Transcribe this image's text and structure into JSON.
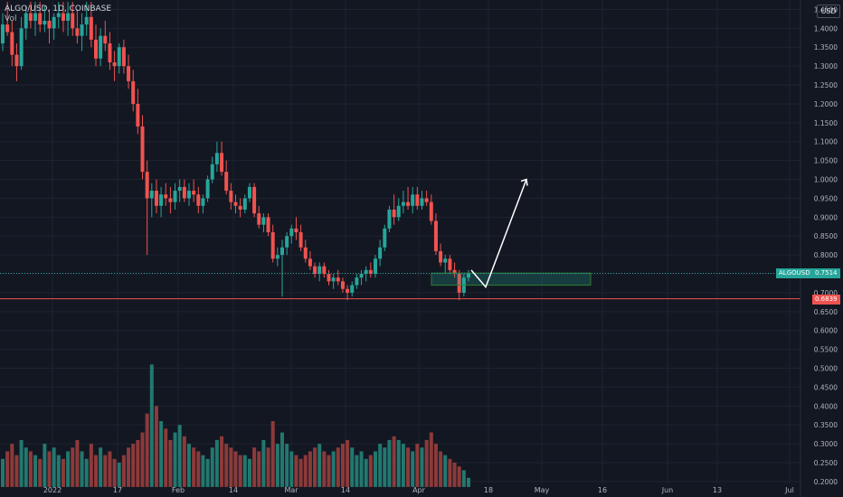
{
  "header": {
    "symbol_line": "ALGO/USD, 1D, COINBASE",
    "vol_label": "Vol"
  },
  "currency_button": "USD",
  "price_tags": {
    "symbol": "ALGOUSD",
    "last_price": "0.7514",
    "level_price": "0.6839"
  },
  "colors": {
    "bg": "#131722",
    "up": "#26a69a",
    "down": "#ef5350",
    "grid": "#1f2330",
    "text": "#b2b5be",
    "vol_up": "#22786f",
    "vol_down": "#8c3a3a"
  },
  "icons": {
    "projection": "arrow-up-right-icon"
  },
  "chart_data": {
    "type": "candlestick",
    "symbol": "ALGO/USD",
    "interval": "1D",
    "exchange": "COINBASE",
    "y_ticks": [
      "1.4500",
      "1.4000",
      "1.3500",
      "1.3000",
      "1.2500",
      "1.2000",
      "1.1500",
      "1.1000",
      "1.0500",
      "1.0000",
      "0.9500",
      "0.9000",
      "0.8500",
      "0.8000",
      "0.7500",
      "0.7000",
      "0.6500",
      "0.6000",
      "0.5500",
      "0.5000",
      "0.4500",
      "0.4000",
      "0.3500",
      "0.3000",
      "0.2500",
      "0.2000"
    ],
    "x_ticks": [
      "2022",
      "17",
      "Feb",
      "14",
      "Mar",
      "14",
      "Apr",
      "18",
      "May",
      "16",
      "Jun",
      "13",
      "Jul"
    ],
    "ylim": [
      0.195,
      1.475
    ],
    "last_price": 0.7514,
    "horizontal_level": 0.6839,
    "support_zone": {
      "low": 0.72,
      "high": 0.752
    },
    "projection_path": [
      [
        0.76,
        0.715
      ],
      [
        1.0
      ]
    ],
    "volume_scale": "bottom overlay",
    "ohlc": [
      [
        1.36,
        1.44,
        1.34,
        1.41
      ],
      [
        1.41,
        1.47,
        1.38,
        1.39
      ],
      [
        1.39,
        1.42,
        1.3,
        1.33
      ],
      [
        1.33,
        1.36,
        1.26,
        1.3
      ],
      [
        1.3,
        1.43,
        1.29,
        1.4
      ],
      [
        1.4,
        1.46,
        1.37,
        1.44
      ],
      [
        1.44,
        1.47,
        1.4,
        1.42
      ],
      [
        1.42,
        1.47,
        1.38,
        1.44
      ],
      [
        1.44,
        1.47,
        1.39,
        1.41
      ],
      [
        1.41,
        1.46,
        1.39,
        1.42
      ],
      [
        1.42,
        1.45,
        1.36,
        1.4
      ],
      [
        1.4,
        1.44,
        1.37,
        1.43
      ],
      [
        1.43,
        1.47,
        1.4,
        1.44
      ],
      [
        1.44,
        1.47,
        1.39,
        1.42
      ],
      [
        1.42,
        1.47,
        1.38,
        1.44
      ],
      [
        1.44,
        1.47,
        1.38,
        1.4
      ],
      [
        1.4,
        1.45,
        1.36,
        1.38
      ],
      [
        1.38,
        1.44,
        1.34,
        1.41
      ],
      [
        1.41,
        1.47,
        1.38,
        1.43
      ],
      [
        1.43,
        1.47,
        1.35,
        1.37
      ],
      [
        1.37,
        1.41,
        1.3,
        1.32
      ],
      [
        1.32,
        1.4,
        1.3,
        1.38
      ],
      [
        1.38,
        1.42,
        1.34,
        1.36
      ],
      [
        1.36,
        1.39,
        1.29,
        1.31
      ],
      [
        1.31,
        1.34,
        1.26,
        1.3
      ],
      [
        1.3,
        1.36,
        1.28,
        1.35
      ],
      [
        1.35,
        1.37,
        1.28,
        1.3
      ],
      [
        1.3,
        1.33,
        1.24,
        1.26
      ],
      [
        1.26,
        1.29,
        1.18,
        1.2
      ],
      [
        1.2,
        1.24,
        1.12,
        1.14
      ],
      [
        1.14,
        1.17,
        1.0,
        1.02
      ],
      [
        1.02,
        1.05,
        0.8,
        0.95
      ],
      [
        0.95,
        0.99,
        0.9,
        0.97
      ],
      [
        0.97,
        1.0,
        0.91,
        0.93
      ],
      [
        0.93,
        0.98,
        0.9,
        0.96
      ],
      [
        0.96,
        0.99,
        0.93,
        0.95
      ],
      [
        0.95,
        0.98,
        0.91,
        0.94
      ],
      [
        0.94,
        0.99,
        0.92,
        0.97
      ],
      [
        0.97,
        1.0,
        0.94,
        0.98
      ],
      [
        0.98,
        1.0,
        0.94,
        0.95
      ],
      [
        0.95,
        0.99,
        0.93,
        0.97
      ],
      [
        0.97,
        1.0,
        0.94,
        0.96
      ],
      [
        0.96,
        0.98,
        0.91,
        0.93
      ],
      [
        0.93,
        0.96,
        0.91,
        0.95
      ],
      [
        0.95,
        1.01,
        0.94,
        1.0
      ],
      [
        1.0,
        1.06,
        0.99,
        1.04
      ],
      [
        1.04,
        1.1,
        1.02,
        1.07
      ],
      [
        1.07,
        1.1,
        1.01,
        1.02
      ],
      [
        1.02,
        1.05,
        0.96,
        0.97
      ],
      [
        0.97,
        0.99,
        0.92,
        0.94
      ],
      [
        0.94,
        0.96,
        0.91,
        0.93
      ],
      [
        0.93,
        0.95,
        0.9,
        0.92
      ],
      [
        0.92,
        0.96,
        0.91,
        0.95
      ],
      [
        0.95,
        0.99,
        0.94,
        0.98
      ],
      [
        0.98,
        0.99,
        0.9,
        0.91
      ],
      [
        0.91,
        0.93,
        0.87,
        0.88
      ],
      [
        0.88,
        0.91,
        0.86,
        0.9
      ],
      [
        0.9,
        0.91,
        0.85,
        0.86
      ],
      [
        0.86,
        0.88,
        0.78,
        0.79
      ],
      [
        0.79,
        0.82,
        0.77,
        0.8
      ],
      [
        0.8,
        0.84,
        0.69,
        0.82
      ],
      [
        0.82,
        0.86,
        0.8,
        0.85
      ],
      [
        0.85,
        0.88,
        0.83,
        0.87
      ],
      [
        0.87,
        0.9,
        0.84,
        0.86
      ],
      [
        0.86,
        0.88,
        0.81,
        0.82
      ],
      [
        0.82,
        0.84,
        0.78,
        0.79
      ],
      [
        0.79,
        0.81,
        0.76,
        0.77
      ],
      [
        0.77,
        0.78,
        0.74,
        0.75
      ],
      [
        0.75,
        0.78,
        0.73,
        0.77
      ],
      [
        0.77,
        0.78,
        0.74,
        0.75
      ],
      [
        0.75,
        0.76,
        0.72,
        0.73
      ],
      [
        0.73,
        0.75,
        0.71,
        0.74
      ],
      [
        0.74,
        0.76,
        0.72,
        0.73
      ],
      [
        0.73,
        0.74,
        0.7,
        0.71
      ],
      [
        0.71,
        0.72,
        0.68,
        0.7
      ],
      [
        0.7,
        0.73,
        0.69,
        0.72
      ],
      [
        0.72,
        0.75,
        0.71,
        0.74
      ],
      [
        0.74,
        0.76,
        0.72,
        0.75
      ],
      [
        0.75,
        0.77,
        0.73,
        0.76
      ],
      [
        0.76,
        0.78,
        0.74,
        0.75
      ],
      [
        0.75,
        0.8,
        0.74,
        0.79
      ],
      [
        0.79,
        0.84,
        0.77,
        0.82
      ],
      [
        0.82,
        0.88,
        0.81,
        0.87
      ],
      [
        0.87,
        0.93,
        0.86,
        0.92
      ],
      [
        0.92,
        0.96,
        0.88,
        0.9
      ],
      [
        0.9,
        0.95,
        0.89,
        0.93
      ],
      [
        0.93,
        0.97,
        0.91,
        0.94
      ],
      [
        0.94,
        0.98,
        0.92,
        0.93
      ],
      [
        0.93,
        0.98,
        0.91,
        0.96
      ],
      [
        0.96,
        0.98,
        0.92,
        0.93
      ],
      [
        0.93,
        0.97,
        0.92,
        0.95
      ],
      [
        0.95,
        0.97,
        0.93,
        0.94
      ],
      [
        0.94,
        0.96,
        0.88,
        0.89
      ],
      [
        0.89,
        0.91,
        0.8,
        0.81
      ],
      [
        0.81,
        0.83,
        0.77,
        0.78
      ],
      [
        0.78,
        0.8,
        0.75,
        0.79
      ],
      [
        0.79,
        0.8,
        0.75,
        0.76
      ],
      [
        0.76,
        0.78,
        0.74,
        0.75
      ],
      [
        0.75,
        0.76,
        0.68,
        0.7
      ],
      [
        0.7,
        0.75,
        0.69,
        0.74
      ],
      [
        0.74,
        0.76,
        0.73,
        0.7514
      ]
    ],
    "volume": [
      0.26,
      0.28,
      0.3,
      0.27,
      0.31,
      0.29,
      0.28,
      0.27,
      0.26,
      0.3,
      0.28,
      0.29,
      0.27,
      0.26,
      0.28,
      0.29,
      0.31,
      0.28,
      0.26,
      0.3,
      0.27,
      0.29,
      0.27,
      0.28,
      0.26,
      0.25,
      0.27,
      0.29,
      0.3,
      0.31,
      0.33,
      0.38,
      0.51,
      0.4,
      0.36,
      0.34,
      0.31,
      0.33,
      0.35,
      0.32,
      0.3,
      0.29,
      0.28,
      0.27,
      0.26,
      0.29,
      0.31,
      0.32,
      0.3,
      0.29,
      0.28,
      0.27,
      0.27,
      0.26,
      0.29,
      0.28,
      0.31,
      0.29,
      0.36,
      0.3,
      0.33,
      0.3,
      0.28,
      0.27,
      0.26,
      0.27,
      0.28,
      0.29,
      0.3,
      0.28,
      0.27,
      0.28,
      0.29,
      0.3,
      0.31,
      0.29,
      0.27,
      0.28,
      0.26,
      0.27,
      0.28,
      0.3,
      0.29,
      0.31,
      0.32,
      0.31,
      0.3,
      0.29,
      0.28,
      0.3,
      0.29,
      0.31,
      0.33,
      0.3,
      0.28,
      0.27,
      0.26,
      0.25,
      0.24,
      0.23,
      0.21
    ]
  }
}
